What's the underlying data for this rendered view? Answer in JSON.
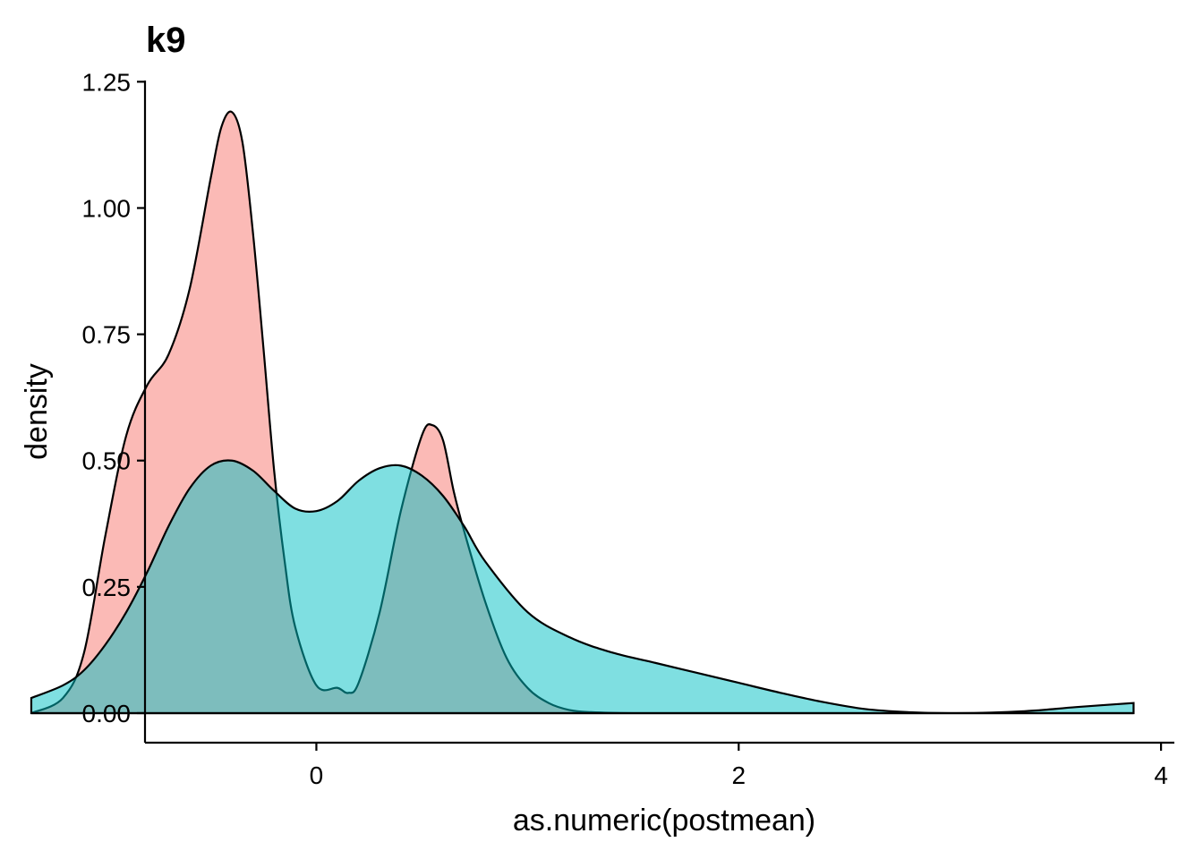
{
  "chart_data": {
    "type": "area",
    "title": "k9",
    "xlabel": "as.numeric(postmean)",
    "ylabel": "density",
    "xlim": [
      -0.8115,
      4.0631
    ],
    "ylim": [
      -0.0585,
      1.2524
    ],
    "x_ticks": [
      0,
      2,
      4
    ],
    "x_tick_labels": [
      "0",
      "2",
      "4"
    ],
    "y_ticks": [
      0,
      0.25,
      0.5,
      0.75,
      1.0,
      1.25
    ],
    "y_tick_labels": [
      "0.00",
      "0.25",
      "0.50",
      "0.75",
      "1.00",
      "1.25"
    ],
    "grid": false,
    "legend": "none",
    "series": [
      {
        "color": "#F8766D",
        "fill_opacity": 0.5,
        "x": [
          -1.35,
          -1.2,
          -1.1,
          -1.0,
          -0.9,
          -0.8,
          -0.7,
          -0.6,
          -0.5,
          -0.45,
          -0.4,
          -0.35,
          -0.3,
          -0.25,
          -0.2,
          -0.15,
          -0.1,
          0.0,
          0.1,
          0.15,
          0.2,
          0.3,
          0.4,
          0.5,
          0.55,
          0.6,
          0.65,
          0.7,
          0.8,
          0.9,
          1.0,
          1.1,
          1.2,
          1.3,
          1.5,
          2.0,
          2.5,
          3.0,
          3.5,
          3.87
        ],
        "y": [
          0.0,
          0.03,
          0.12,
          0.35,
          0.55,
          0.65,
          0.71,
          0.84,
          1.06,
          1.16,
          1.19,
          1.13,
          0.95,
          0.72,
          0.48,
          0.3,
          0.17,
          0.055,
          0.05,
          0.04,
          0.06,
          0.2,
          0.4,
          0.55,
          0.57,
          0.54,
          0.44,
          0.36,
          0.22,
          0.11,
          0.05,
          0.02,
          0.006,
          0.002,
          0.0,
          0.0,
          0.0,
          0.0,
          0.0,
          0.0
        ]
      },
      {
        "color": "#00BFC4",
        "fill_opacity": 0.5,
        "x": [
          -1.35,
          -1.2,
          -1.1,
          -1.0,
          -0.9,
          -0.8,
          -0.7,
          -0.6,
          -0.5,
          -0.4,
          -0.3,
          -0.2,
          -0.1,
          0.0,
          0.1,
          0.2,
          0.3,
          0.4,
          0.5,
          0.6,
          0.7,
          0.8,
          1.0,
          1.2,
          1.4,
          1.6,
          1.8,
          2.0,
          2.2,
          2.4,
          2.6,
          2.8,
          3.0,
          3.2,
          3.4,
          3.6,
          3.87
        ],
        "y": [
          0.03,
          0.055,
          0.085,
          0.135,
          0.2,
          0.28,
          0.37,
          0.445,
          0.49,
          0.5,
          0.48,
          0.44,
          0.405,
          0.4,
          0.42,
          0.46,
          0.485,
          0.49,
          0.47,
          0.43,
          0.37,
          0.3,
          0.2,
          0.15,
          0.12,
          0.1,
          0.08,
          0.06,
          0.04,
          0.022,
          0.008,
          0.002,
          0.0,
          0.001,
          0.005,
          0.012,
          0.02
        ]
      }
    ]
  }
}
